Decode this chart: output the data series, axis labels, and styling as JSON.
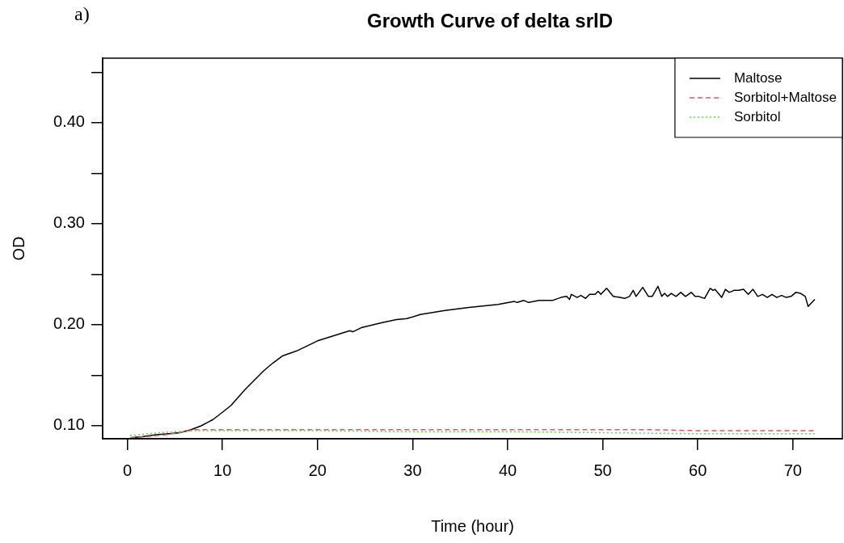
{
  "chart_data": {
    "type": "line",
    "title": "Growth Curve of delta srlD",
    "xlabel": "Time (hour)",
    "ylabel": "OD",
    "annotations": [
      "a)"
    ],
    "xlim": [
      -2.6,
      75.2
    ],
    "ylim": [
      0.087,
      0.464
    ],
    "xticks": [
      0,
      10,
      20,
      30,
      40,
      50,
      60,
      70
    ],
    "yticks": [
      {
        "value": 0.1,
        "label": "0.10"
      },
      {
        "value": 0.15,
        "label": null
      },
      {
        "value": 0.2,
        "label": "0.20"
      },
      {
        "value": 0.25,
        "label": null
      },
      {
        "value": 0.3,
        "label": "0.30"
      },
      {
        "value": 0.35,
        "label": null
      },
      {
        "value": 0.4,
        "label": "0.40"
      },
      {
        "value": 0.45,
        "label": null
      }
    ],
    "grid": false,
    "legend": "top right",
    "marker": "none",
    "series": [
      {
        "name": "Maltose",
        "color": "#000000",
        "line_style": "solid",
        "x": [
          0.3,
          1.5,
          3,
          4.4,
          5.5,
          6.7,
          7.8,
          9,
          10.1,
          10.9,
          12.4,
          14.3,
          15.3,
          16.3,
          17.8,
          20,
          23.4,
          23.7,
          24.6,
          26.8,
          28.3,
          29.4,
          30.8,
          33.4,
          35.9,
          39,
          40.7,
          41,
          41.7,
          42.2,
          43.3,
          44.7,
          45.6,
          46.2,
          46.5,
          46.7,
          47.3,
          47.7,
          48.2,
          48.6,
          49.2,
          49.5,
          49.8,
          50.4,
          51.1,
          51.8,
          52.3,
          52.8,
          53.2,
          53.5,
          54.2,
          54.8,
          55.2,
          55.8,
          56.2,
          56.5,
          56.8,
          57.2,
          57.7,
          58.2,
          58.7,
          59.3,
          59.7,
          60.1,
          60.7,
          61.3,
          61.6,
          61.8,
          62.5,
          62.9,
          63.3,
          63.8,
          64.3,
          64.8,
          65.3,
          65.8,
          66.3,
          66.8,
          67.3,
          67.8,
          68.3,
          68.8,
          69.3,
          69.8,
          70.3,
          70.8,
          71.3,
          71.6,
          72.3
        ],
        "values": [
          0.088,
          0.089,
          0.091,
          0.092,
          0.093,
          0.096,
          0.1,
          0.106,
          0.114,
          0.12,
          0.136,
          0.154,
          0.162,
          0.169,
          0.174,
          0.184,
          0.194,
          0.193,
          0.197,
          0.202,
          0.205,
          0.206,
          0.21,
          0.214,
          0.217,
          0.22,
          0.223,
          0.222,
          0.224,
          0.222,
          0.224,
          0.224,
          0.227,
          0.228,
          0.225,
          0.23,
          0.227,
          0.229,
          0.226,
          0.23,
          0.23,
          0.233,
          0.23,
          0.236,
          0.228,
          0.227,
          0.226,
          0.228,
          0.234,
          0.228,
          0.237,
          0.228,
          0.228,
          0.238,
          0.228,
          0.231,
          0.228,
          0.231,
          0.228,
          0.232,
          0.228,
          0.232,
          0.228,
          0.228,
          0.226,
          0.236,
          0.234,
          0.235,
          0.227,
          0.235,
          0.232,
          0.234,
          0.234,
          0.235,
          0.23,
          0.235,
          0.228,
          0.23,
          0.227,
          0.23,
          0.227,
          0.229,
          0.227,
          0.228,
          0.232,
          0.231,
          0.228,
          0.218,
          0.225
        ]
      },
      {
        "name": "Sorbitol+Maltose",
        "color": "#df536b",
        "line_style": "dashed",
        "x": [
          0.3,
          2,
          4,
          5.5,
          7,
          10,
          20,
          30,
          40,
          50,
          55,
          60,
          65,
          70,
          72.3
        ],
        "values": [
          0.088,
          0.089,
          0.091,
          0.093,
          0.096,
          0.096,
          0.096,
          0.096,
          0.096,
          0.096,
          0.096,
          0.095,
          0.095,
          0.095,
          0.095
        ]
      },
      {
        "name": "Sorbitol",
        "color": "#61d04f",
        "line_style": "dotted",
        "x": [
          0.3,
          2,
          5,
          7,
          10,
          20,
          30,
          40,
          50,
          60,
          70,
          72.3
        ],
        "values": [
          0.09,
          0.092,
          0.094,
          0.095,
          0.095,
          0.095,
          0.094,
          0.094,
          0.093,
          0.092,
          0.092,
          0.092
        ]
      }
    ]
  }
}
